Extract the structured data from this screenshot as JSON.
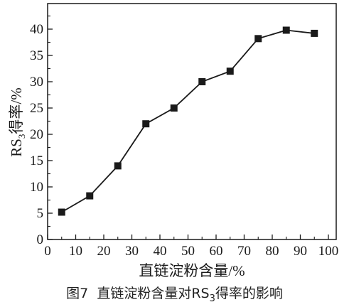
{
  "figure": {
    "caption_prefix": "图7",
    "caption_text_before": "直链淀粉含量对RS",
    "caption_sub": "3",
    "caption_text_after": "得率的影响"
  },
  "chart_data": {
    "type": "line",
    "title": "",
    "xlabel": "直链淀粉含量/%",
    "ylabel_main": "RS",
    "ylabel_sub": "3",
    "ylabel_rest": "得率/%",
    "xlim": [
      0,
      100
    ],
    "ylim": [
      0,
      45
    ],
    "x_ticks": [
      0,
      10,
      20,
      30,
      40,
      50,
      60,
      70,
      80,
      90,
      100
    ],
    "y_ticks": [
      0,
      5,
      10,
      15,
      20,
      25,
      30,
      35,
      40
    ],
    "grid": false,
    "marker": "square",
    "line_color": "#1a1a1a",
    "series": [
      {
        "x": [
          5,
          15,
          25,
          35,
          45,
          55,
          65,
          75,
          85,
          95
        ],
        "y": [
          5.2,
          8.3,
          14.0,
          22.0,
          25.0,
          30.0,
          32.0,
          38.2,
          39.8,
          39.2
        ]
      }
    ]
  }
}
